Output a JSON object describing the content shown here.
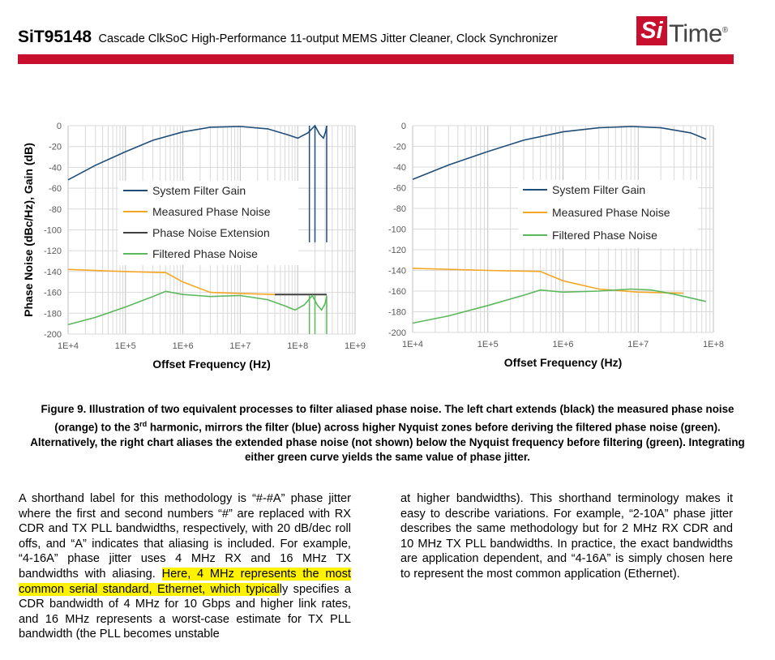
{
  "header": {
    "part_number": "SiT95148",
    "subtitle": "Cascade ClkSoC High-Performance 11-output MEMS Jitter Cleaner, Clock Synchronizer",
    "logo_si": "Si",
    "logo_time": "Time",
    "logo_mark": "®",
    "brand_color": "#c8102e"
  },
  "chart_data": [
    {
      "type": "line",
      "ylabel": "Phase Noise (dBc/Hz), Gain (dB)",
      "xlabel": "Offset Frequency (Hz)",
      "x_scale": "log",
      "xlim": [
        10000,
        1000000000
      ],
      "ylim": [
        -200,
        0
      ],
      "x_ticks": [
        "1E+4",
        "1E+5",
        "1E+6",
        "1E+7",
        "1E+8",
        "1E+9"
      ],
      "y_ticks": [
        "0",
        "-20",
        "-40",
        "-60",
        "-80",
        "-100",
        "-120",
        "-140",
        "-160",
        "-180",
        "-200"
      ],
      "grid": true,
      "legend_position": "center-left",
      "series": [
        {
          "name": "System Filter Gain",
          "color": "#1f4e79",
          "points": [
            [
              10000,
              -52
            ],
            [
              30000,
              -38
            ],
            [
              100000,
              -25
            ],
            [
              300000,
              -14
            ],
            [
              1000000,
              -6
            ],
            [
              3000000,
              -1.5
            ],
            [
              10000000,
              -0.8
            ],
            [
              30000000,
              -3
            ],
            [
              70000000,
              -9
            ],
            [
              100000000,
              -12
            ],
            [
              150000000,
              -7
            ],
            [
              200000000,
              0
            ],
            [
              240000000,
              -8
            ],
            [
              280000000,
              -12
            ],
            [
              310000000,
              -5
            ],
            [
              320000000,
              0
            ]
          ]
        },
        {
          "name": "Measured Phase Noise",
          "color": "#f5a623",
          "points": [
            [
              10000,
              -138
            ],
            [
              100000,
              -140
            ],
            [
              500000,
              -141
            ],
            [
              1000000,
              -150
            ],
            [
              3000000,
              -160
            ],
            [
              10000000,
              -161
            ],
            [
              40000000,
              -162
            ]
          ]
        },
        {
          "name": "Phase Noise Extension",
          "color": "#404040",
          "points": [
            [
              40000000,
              -162
            ],
            [
              320000000,
              -162
            ]
          ]
        },
        {
          "name": "Filtered Phase Noise",
          "color": "#5cb85c",
          "points": [
            [
              10000,
              -191
            ],
            [
              30000,
              -184
            ],
            [
              100000,
              -174
            ],
            [
              300000,
              -164
            ],
            [
              500000,
              -159
            ],
            [
              1000000,
              -162
            ],
            [
              3000000,
              -164
            ],
            [
              10000000,
              -163
            ],
            [
              30000000,
              -167
            ],
            [
              60000000,
              -173
            ],
            [
              90000000,
              -177
            ],
            [
              130000000,
              -172
            ],
            [
              180000000,
              -163
            ],
            [
              220000000,
              -172
            ],
            [
              260000000,
              -177
            ],
            [
              300000000,
              -171
            ],
            [
              320000000,
              -164
            ]
          ]
        }
      ],
      "spikes_x": [
        160000000,
        200000000,
        320000000
      ]
    },
    {
      "type": "line",
      "ylabel": "",
      "xlabel": "Offset Frequency (Hz)",
      "x_scale": "log",
      "xlim": [
        10000,
        100000000
      ],
      "ylim": [
        -200,
        0
      ],
      "x_ticks": [
        "1E+4",
        "1E+5",
        "1E+6",
        "1E+7",
        "1E+8"
      ],
      "y_ticks": [
        "0",
        "-20",
        "-40",
        "-60",
        "-80",
        "-100",
        "-120",
        "-140",
        "-160",
        "-180",
        "-200"
      ],
      "grid": true,
      "legend_position": "center-right",
      "series": [
        {
          "name": "System Filter Gain",
          "color": "#1f4e79",
          "points": [
            [
              10000,
              -52
            ],
            [
              30000,
              -38
            ],
            [
              100000,
              -25
            ],
            [
              300000,
              -14
            ],
            [
              1000000,
              -6
            ],
            [
              3000000,
              -2
            ],
            [
              8000000,
              -0.8
            ],
            [
              20000000,
              -2
            ],
            [
              50000000,
              -7
            ],
            [
              80000000,
              -13
            ]
          ]
        },
        {
          "name": "Measured Phase Noise",
          "color": "#f5a623",
          "points": [
            [
              10000,
              -138
            ],
            [
              100000,
              -140
            ],
            [
              500000,
              -141
            ],
            [
              1000000,
              -150
            ],
            [
              3000000,
              -158
            ],
            [
              10000000,
              -161
            ],
            [
              40000000,
              -162
            ]
          ]
        },
        {
          "name": "Filtered Phase Noise",
          "color": "#5cb85c",
          "points": [
            [
              10000,
              -191
            ],
            [
              30000,
              -184
            ],
            [
              100000,
              -174
            ],
            [
              300000,
              -164
            ],
            [
              500000,
              -159
            ],
            [
              1000000,
              -161
            ],
            [
              3000000,
              -160
            ],
            [
              8000000,
              -158
            ],
            [
              15000000,
              -159
            ],
            [
              30000000,
              -163
            ],
            [
              80000000,
              -170
            ]
          ]
        }
      ]
    }
  ],
  "caption": {
    "figure_label": "Figure 9.",
    "text": "Illustration of two equivalent processes to filter aliased phase noise. The left chart extends (black) the measured phase noise (orange) to the 3",
    "superscript": "rd",
    "text_after": " harmonic, mirrors the filter (blue) across higher Nyquist zones before deriving the filtered phase noise (green). Alternatively, the right chart aliases the extended phase noise (not shown) below the Nyquist frequency before filtering (green). Integrating either green curve yields the same value of phase jitter."
  },
  "body": {
    "left_before": "A shorthand label for this methodology is “#-#A” phase jitter where the first and second numbers “#” are replaced with RX CDR and TX PLL bandwidths, respectively, with 20 dB/dec roll offs, and “A” indicates that aliasing is included. For example, “4-16A” phase jitter uses 4 MHz RX and 16 MHz TX bandwidths with aliasing. ",
    "left_highlight": "Here, 4 MHz represents the most common serial standard, Ethernet, which typical",
    "left_after": "ly specifies a CDR bandwidth of 4 MHz for 10 Gbps and higher link rates, and 16 MHz represents a worst-case estimate for TX PLL bandwidth (the PLL becomes unstable",
    "right": "at higher bandwidths). This shorthand terminology makes it easy to describe variations. For example, “2-10A” phase jitter describes the same methodology but for 2 MHz RX CDR and 10 MHz TX PLL bandwidths. In practice, the exact bandwidths are application dependent, and “4-16A” is simply chosen here to represent the most common application (Ethernet).",
    "highlight_color": "#fff200"
  }
}
